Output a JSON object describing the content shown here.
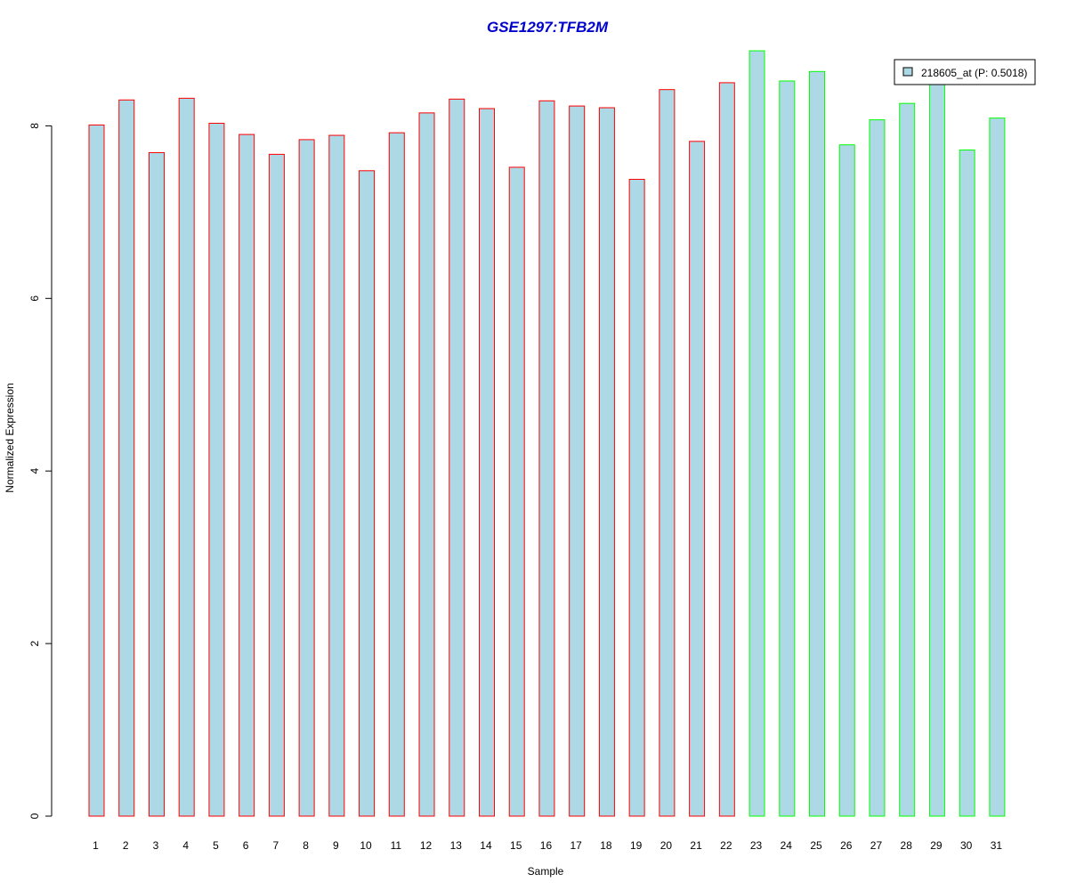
{
  "chart_data": {
    "type": "bar",
    "title": "GSE1297:TFB2M",
    "xlabel": "Sample",
    "ylabel": "Normalized Expression",
    "ylim": [
      0,
      8.9
    ],
    "y_ticks": [
      0,
      2,
      4,
      6,
      8
    ],
    "y_tick_labels": [
      "0",
      "2",
      "4",
      "6",
      "8"
    ],
    "grid": false,
    "legend_position": "top-right",
    "categories": [
      "1",
      "2",
      "3",
      "4",
      "5",
      "6",
      "7",
      "8",
      "9",
      "10",
      "11",
      "12",
      "13",
      "14",
      "15",
      "16",
      "17",
      "18",
      "19",
      "20",
      "21",
      "22",
      "23",
      "24",
      "25",
      "26",
      "27",
      "28",
      "29",
      "30",
      "31"
    ],
    "series": [
      {
        "name": "218605_at (P: 0.5018)",
        "fill": "#add8e6",
        "values": [
          8.01,
          8.3,
          7.69,
          8.32,
          8.03,
          7.9,
          7.67,
          7.84,
          7.89,
          7.48,
          7.92,
          8.15,
          8.31,
          8.2,
          7.52,
          8.29,
          8.23,
          8.21,
          7.38,
          8.42,
          7.82,
          8.5,
          8.87,
          8.52,
          8.63,
          7.78,
          8.07,
          8.26,
          8.5,
          7.72,
          8.09
        ]
      }
    ],
    "groups": [
      {
        "range": [
          1,
          22
        ],
        "border_color": "#ff0000"
      },
      {
        "range": [
          23,
          31
        ],
        "border_color": "#00ff00"
      }
    ],
    "colors": {
      "title": "#0000cc",
      "bar_fill": "#add8e6",
      "axis": "#000000"
    }
  }
}
